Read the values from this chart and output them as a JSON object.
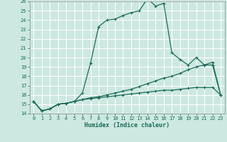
{
  "title": "",
  "xlabel": "Humidex (Indice chaleur)",
  "bg_color": "#cce8e0",
  "grid_color": "#ffffff",
  "line_color": "#1a6b5a",
  "xlim": [
    -0.5,
    23.5
  ],
  "ylim": [
    14,
    26
  ],
  "xticks": [
    0,
    1,
    2,
    3,
    4,
    5,
    6,
    7,
    8,
    9,
    10,
    11,
    12,
    13,
    14,
    15,
    16,
    17,
    18,
    19,
    20,
    21,
    22,
    23
  ],
  "yticks": [
    14,
    15,
    16,
    17,
    18,
    19,
    20,
    21,
    22,
    23,
    24,
    25,
    26
  ],
  "line1_x": [
    0,
    1,
    2,
    3,
    4,
    5,
    6,
    7,
    8,
    9,
    10,
    11,
    12,
    13,
    14,
    15,
    16,
    17,
    18,
    19,
    20,
    21,
    22,
    23
  ],
  "line1_y": [
    15.3,
    14.3,
    14.5,
    15.0,
    15.1,
    15.3,
    16.2,
    19.4,
    23.3,
    24.0,
    24.1,
    24.5,
    24.8,
    25.0,
    26.3,
    25.5,
    25.8,
    20.5,
    19.8,
    19.2,
    20.0,
    19.2,
    19.2,
    16.0
  ],
  "line2_x": [
    0,
    1,
    2,
    3,
    4,
    5,
    6,
    7,
    8,
    9,
    10,
    11,
    12,
    13,
    14,
    15,
    16,
    17,
    18,
    19,
    20,
    21,
    22,
    23
  ],
  "line2_y": [
    15.3,
    14.3,
    14.5,
    15.0,
    15.1,
    15.3,
    15.5,
    15.7,
    15.8,
    16.0,
    16.2,
    16.4,
    16.6,
    16.9,
    17.2,
    17.5,
    17.8,
    18.0,
    18.3,
    18.7,
    19.0,
    19.2,
    19.5,
    16.0
  ],
  "line3_x": [
    0,
    1,
    2,
    3,
    4,
    5,
    6,
    7,
    8,
    9,
    10,
    11,
    12,
    13,
    14,
    15,
    16,
    17,
    18,
    19,
    20,
    21,
    22,
    23
  ],
  "line3_y": [
    15.3,
    14.3,
    14.5,
    15.0,
    15.1,
    15.3,
    15.5,
    15.6,
    15.7,
    15.8,
    15.9,
    16.0,
    16.1,
    16.2,
    16.3,
    16.4,
    16.5,
    16.5,
    16.6,
    16.7,
    16.8,
    16.8,
    16.8,
    16.0
  ],
  "tick_fontsize": 5.0,
  "xlabel_fontsize": 6.0,
  "marker_size": 3,
  "linewidth": 0.9
}
